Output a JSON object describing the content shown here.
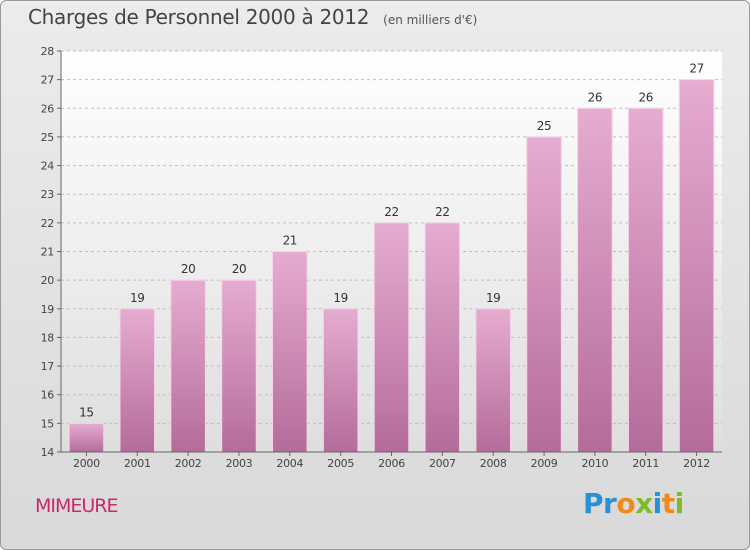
{
  "header": {
    "title": "Charges de Personnel 2000 à 2012",
    "unit": "(en milliers d'€)"
  },
  "footer": {
    "place": "MIMEURE",
    "logo_letters": [
      {
        "ch": "P",
        "color": "#2a8fd4"
      },
      {
        "ch": "r",
        "color": "#2a8fd4"
      },
      {
        "ch": "o",
        "color": "#f08a1c"
      },
      {
        "ch": "x",
        "color": "#7dbb2c"
      },
      {
        "ch": "i",
        "color": "#2a8fd4"
      },
      {
        "ch": "t",
        "color": "#f08a1c"
      },
      {
        "ch": "i",
        "color": "#7dbb2c"
      }
    ]
  },
  "colors": {
    "bar_top": "#e6acd0",
    "bar_bottom": "#b46c9a",
    "axis": "#666666",
    "grid": "#bfbfbf"
  },
  "chart_data": {
    "type": "bar",
    "title": "Charges de Personnel 2000 à 2012",
    "subtitle": "(en milliers d'€)",
    "xlabel": "",
    "ylabel": "",
    "categories": [
      "2000",
      "2001",
      "2002",
      "2003",
      "2004",
      "2005",
      "2006",
      "2007",
      "2008",
      "2009",
      "2010",
      "2011",
      "2012"
    ],
    "values": [
      15,
      19,
      20,
      20,
      21,
      19,
      22,
      22,
      19,
      25,
      26,
      26,
      27
    ],
    "ylim": [
      14,
      28
    ],
    "yticks": [
      14,
      15,
      16,
      17,
      18,
      19,
      20,
      21,
      22,
      23,
      24,
      25,
      26,
      27,
      28
    ],
    "grid": "horizontal dashed",
    "legend": "none"
  }
}
